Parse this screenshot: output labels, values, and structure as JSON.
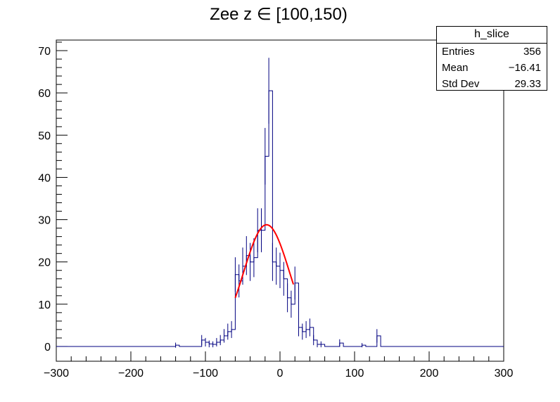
{
  "chart_data": {
    "type": "histogram",
    "title": "Zee z ∈ [100,150)",
    "xlim": [
      -300,
      300
    ],
    "ylim": [
      -3.5,
      72.5
    ],
    "x_ticks": [
      -300,
      -200,
      -100,
      0,
      100,
      200,
      300
    ],
    "x_tick_labels": [
      "−300",
      "−200",
      "−100",
      "0",
      "100",
      "200",
      "300"
    ],
    "y_ticks": [
      0,
      10,
      20,
      30,
      40,
      50,
      60,
      70
    ],
    "y_tick_labels": [
      "0",
      "10",
      "20",
      "30",
      "40",
      "50",
      "60",
      "70"
    ],
    "bin_width": 5,
    "bins_centers": [
      -140,
      -105,
      -100,
      -95,
      -90,
      -85,
      -80,
      -75,
      -70,
      -65,
      -60,
      -55,
      -50,
      -45,
      -40,
      -35,
      -30,
      -25,
      -20,
      -15,
      -10,
      -5,
      0,
      5,
      10,
      15,
      20,
      25,
      30,
      35,
      40,
      45,
      50,
      55,
      80,
      110,
      130
    ],
    "bins_values": [
      0.3,
      1.5,
      1,
      0.6,
      0.5,
      1,
      1.5,
      2.5,
      3.5,
      4,
      17,
      15.5,
      19,
      21.5,
      20,
      21,
      27.5,
      27.5,
      45,
      60.5,
      20,
      19,
      18,
      16,
      11.5,
      10,
      15,
      4.5,
      3.5,
      4,
      4.5,
      1.5,
      0.5,
      0.5,
      0.8,
      0.3,
      2.5
    ],
    "bins_errors": [
      0.6,
      1.2,
      1.0,
      0.8,
      0.7,
      1.0,
      1.2,
      1.6,
      1.9,
      2.0,
      4.1,
      3.9,
      4.4,
      4.6,
      4.5,
      4.6,
      5.2,
      5.2,
      6.7,
      7.8,
      4.5,
      4.4,
      4.2,
      4.0,
      3.4,
      3.2,
      3.9,
      2.1,
      1.9,
      2.0,
      2.1,
      1.2,
      0.7,
      0.7,
      0.9,
      0.5,
      1.6
    ],
    "fit": {
      "type": "gaussian",
      "color": "#ff0000",
      "amplitude": 28.8,
      "mean": -18.0,
      "sigma": 31.0,
      "x_range": [
        -60,
        18
      ]
    },
    "line_color": "#000080"
  },
  "stats": {
    "name": "h_slice",
    "rows": [
      {
        "label": "Entries",
        "value": "356"
      },
      {
        "label": "Mean",
        "value": "−16.41"
      },
      {
        "label": "Std Dev",
        "value": "29.33"
      }
    ]
  }
}
